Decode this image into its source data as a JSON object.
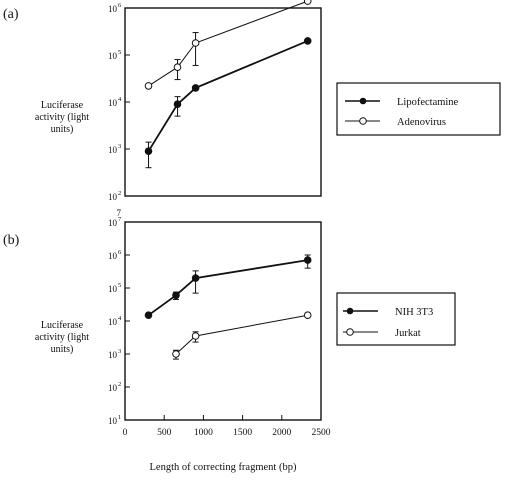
{
  "figure": {
    "xlabel": "Length of correcting fragment (bp)"
  },
  "chart_data": [
    {
      "type": "line",
      "panel_label": "(a)",
      "ylabel_lines": [
        "Luciferase",
        "activity (light",
        "units)"
      ],
      "yscale": "log",
      "ylim": [
        100,
        1000000
      ],
      "ytick_labels": [
        "10",
        "10",
        "10",
        "10",
        "10"
      ],
      "ytick_exponents": [
        "2",
        "3",
        "4",
        "5",
        "6"
      ],
      "xlim": [
        0,
        2500
      ],
      "xtick_labels": [],
      "grid": false,
      "legend": "right",
      "series": [
        {
          "name": "Lipofectamine",
          "marker": "filled-circle",
          "x": [
            300,
            670,
            900,
            2330
          ],
          "y": [
            900,
            9000,
            20000,
            200000
          ],
          "err": [
            500,
            4000,
            0,
            0
          ]
        },
        {
          "name": "Adenovirus",
          "marker": "open-circle",
          "x": [
            300,
            670,
            900,
            2330
          ],
          "y": [
            22000,
            55000,
            180000,
            1400000
          ],
          "err": [
            0,
            25000,
            120000,
            0
          ]
        }
      ]
    },
    {
      "type": "line",
      "panel_label": "(b)",
      "ylabel_lines": [
        "Luciferase",
        "activity (light",
        "units)"
      ],
      "yscale": "log",
      "ylim": [
        10,
        10000000
      ],
      "ytick_labels": [
        "10",
        "10",
        "10",
        "10",
        "10",
        "10",
        "10"
      ],
      "ytick_exponents": [
        "1",
        "2",
        "3",
        "4",
        "5",
        "6",
        "7"
      ],
      "side_label": "7",
      "xlim": [
        0,
        2500
      ],
      "xtick_labels": [
        "0",
        "500",
        "1000",
        "1500",
        "2000",
        "2500"
      ],
      "grid": false,
      "legend": "right",
      "series": [
        {
          "name": "NIH 3T3",
          "marker": "filled-circle",
          "x": [
            300,
            650,
            900,
            2330
          ],
          "y": [
            15000,
            60000,
            200000,
            700000
          ],
          "err": [
            0,
            15000,
            130000,
            300000
          ]
        },
        {
          "name": "Jurkat",
          "marker": "open-circle",
          "x": [
            650,
            900,
            2330
          ],
          "y": [
            1000,
            3500,
            15000
          ],
          "err": [
            300,
            1200,
            0
          ]
        }
      ]
    }
  ]
}
